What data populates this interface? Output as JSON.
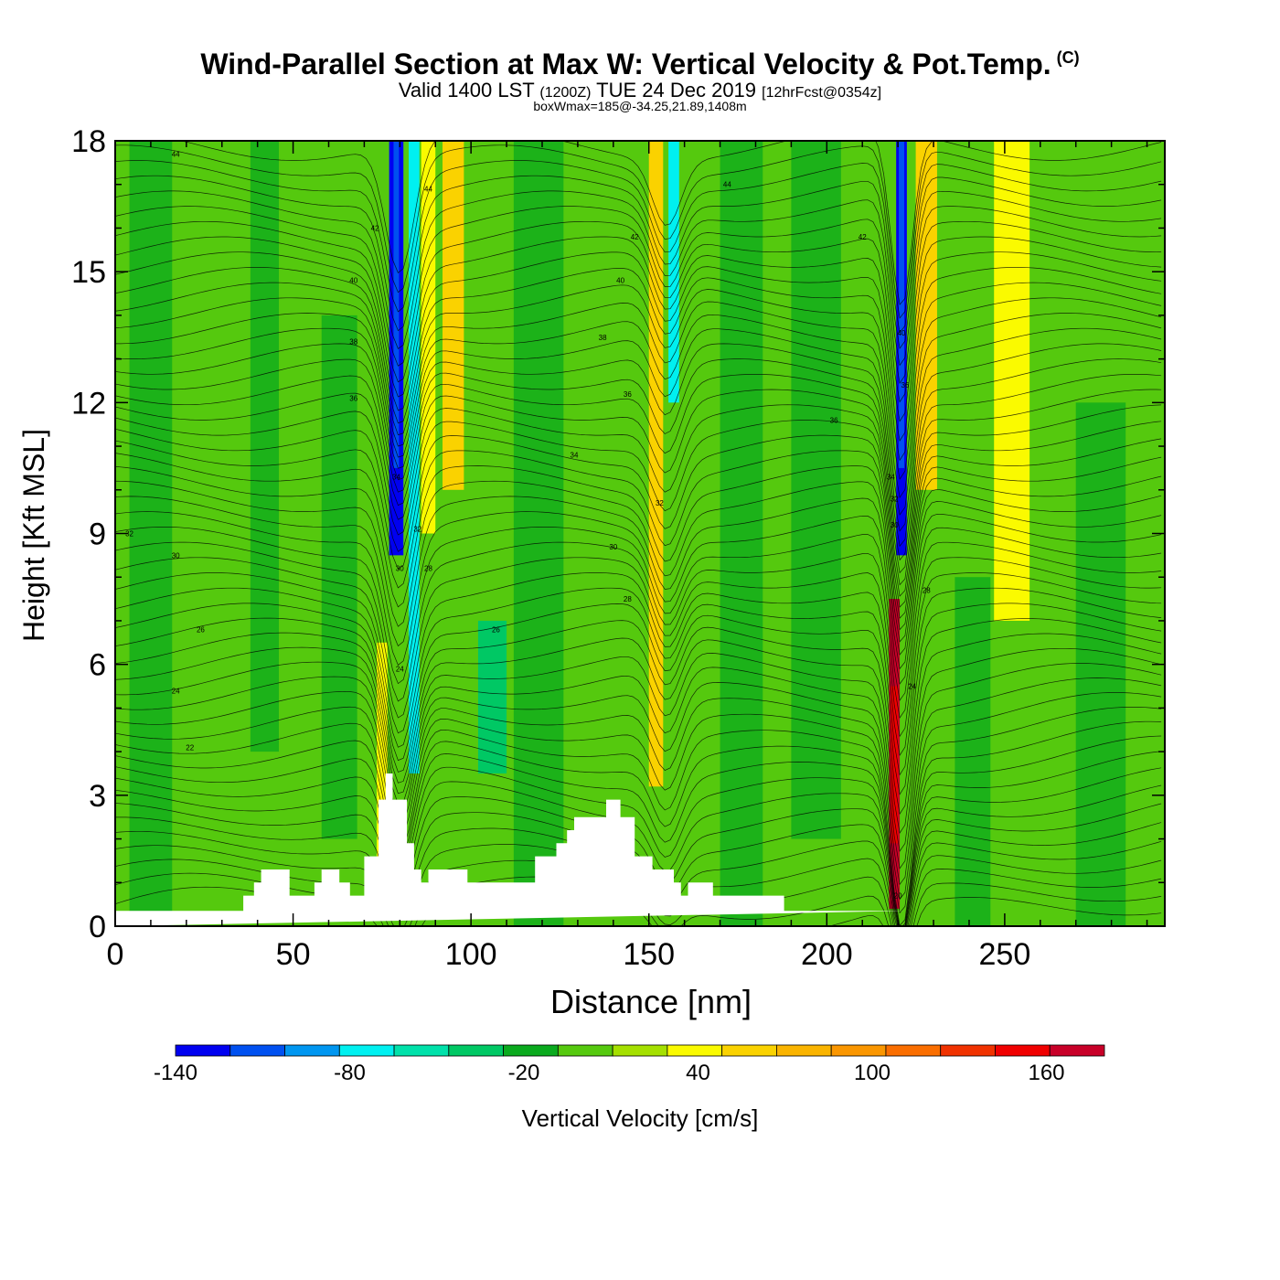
{
  "header": {
    "title": "Wind-Parallel Section at Max W: Vertical Velocity & Pot.Temp.",
    "copyright_mark": "(C)",
    "valid_prefix": "Valid 1400 LST",
    "valid_utc": "(1200Z)",
    "valid_date": "TUE 24 Dec 2019",
    "forecast_info": "[12hrFcst@0354z]",
    "box_info": "boxWmax=185@-34.25,21.89,1408m"
  },
  "colors": {
    "frame": "#000000",
    "terrain": "#ffffff",
    "base_field": "#55c90e"
  },
  "chart_data": {
    "type": "heatmap",
    "title": "Wind-Parallel Section at Max W: Vertical Velocity & Pot.Temp.",
    "xlabel": "Distance [nm]",
    "ylabel": "Height [Kft MSL]",
    "xlim": [
      0,
      295
    ],
    "ylim": [
      0,
      18
    ],
    "xticks": [
      0,
      50,
      100,
      150,
      200,
      250
    ],
    "yticks": [
      0,
      3,
      6,
      9,
      12,
      15,
      18
    ],
    "colorbar": {
      "label": "Vertical Velocity [cm/s]",
      "bounds": [
        -140,
        -120,
        -100,
        -80,
        -60,
        -40,
        -20,
        0,
        20,
        40,
        60,
        80,
        100,
        120,
        140,
        160,
        180
      ],
      "tick_labels": [
        -140,
        -80,
        -20,
        40,
        100,
        160
      ],
      "colors": [
        "#0000f0",
        "#0050f0",
        "#0096f0",
        "#00f0f0",
        "#00e1aa",
        "#00c864",
        "#0aaa1e",
        "#55c90e",
        "#a5e000",
        "#fafa00",
        "#fad200",
        "#fab400",
        "#fa9600",
        "#fa6e00",
        "#f03200",
        "#f00000",
        "#c80028"
      ]
    },
    "velocity_bands": [
      {
        "x_center": 79,
        "x_width": 4,
        "y_bottom": 8.5,
        "y_top": 18,
        "w": -140
      },
      {
        "x_center": 84,
        "x_width": 3,
        "y_bottom": 3.5,
        "y_top": 18,
        "w": -70
      },
      {
        "x_center": 88,
        "x_width": 4,
        "y_bottom": 9,
        "y_top": 18,
        "w": 40
      },
      {
        "x_center": 95,
        "x_width": 6,
        "y_bottom": 10,
        "y_top": 18,
        "w": 60
      },
      {
        "x_center": 106,
        "x_width": 8,
        "y_bottom": 3.5,
        "y_top": 7,
        "w": -40
      },
      {
        "x_center": 152,
        "x_width": 4,
        "y_bottom": 3.2,
        "y_top": 18,
        "w": 60
      },
      {
        "x_center": 157,
        "x_width": 3,
        "y_bottom": 12,
        "y_top": 18,
        "w": -80
      },
      {
        "x_center": 221,
        "x_width": 3,
        "y_bottom": 8.5,
        "y_top": 18,
        "w": -140
      },
      {
        "x_center": 219,
        "x_width": 3,
        "y_bottom": 0.4,
        "y_top": 7.5,
        "w": 180
      },
      {
        "x_center": 228,
        "x_width": 6,
        "y_bottom": 10,
        "y_top": 18,
        "w": 60
      },
      {
        "x_center": 252,
        "x_width": 10,
        "y_bottom": 7,
        "y_top": 18,
        "w": 40
      },
      {
        "x_center": 75,
        "x_width": 3,
        "y_bottom": 1.6,
        "y_top": 6.5,
        "w": 50
      }
    ],
    "terrain": {
      "x": [
        0,
        36,
        36,
        39,
        39,
        41,
        41,
        49,
        49,
        56,
        56,
        58,
        58,
        63,
        63,
        66,
        66,
        70,
        70,
        74,
        74,
        76,
        76,
        78,
        78,
        82,
        82,
        84,
        84,
        86,
        86,
        88,
        88,
        99,
        99,
        118,
        118,
        124,
        124,
        127,
        127,
        129,
        129,
        138,
        138,
        142,
        142,
        146,
        146,
        151,
        151,
        157,
        157,
        159,
        159,
        161,
        161,
        168,
        168,
        188,
        188,
        190,
        190,
        204,
        204,
        222,
        222,
        295
      ],
      "h": [
        0.35,
        0.35,
        0.7,
        0.7,
        1.0,
        1.0,
        1.3,
        1.3,
        0.7,
        0.7,
        1.0,
        1.0,
        1.3,
        1.3,
        1.0,
        1.0,
        0.7,
        0.7,
        1.6,
        1.6,
        2.9,
        2.9,
        3.5,
        3.5,
        2.9,
        2.9,
        1.9,
        1.9,
        1.3,
        1.3,
        1.0,
        1.0,
        1.3,
        1.3,
        1.0,
        1.0,
        1.6,
        1.6,
        1.9,
        1.9,
        2.2,
        2.2,
        2.5,
        2.5,
        2.9,
        2.9,
        2.5,
        2.5,
        1.6,
        1.6,
        1.3,
        1.3,
        1.0,
        1.0,
        0.7,
        0.7,
        1.0,
        1.0,
        0.7,
        0.7,
        0.35,
        0.35,
        0.35,
        0.35,
        0.35,
        0.35
      ]
    },
    "theta_contour_labels": [
      {
        "x": 17,
        "y": 17.7,
        "label": "44"
      },
      {
        "x": 88,
        "y": 16.9,
        "label": "44"
      },
      {
        "x": 73,
        "y": 16.0,
        "label": "42"
      },
      {
        "x": 146,
        "y": 15.8,
        "label": "42"
      },
      {
        "x": 172,
        "y": 17.0,
        "label": "44"
      },
      {
        "x": 210,
        "y": 15.8,
        "label": "42"
      },
      {
        "x": 67,
        "y": 14.8,
        "label": "40"
      },
      {
        "x": 142,
        "y": 14.8,
        "label": "40"
      },
      {
        "x": 221,
        "y": 13.6,
        "label": "40"
      },
      {
        "x": 67,
        "y": 13.4,
        "label": "38"
      },
      {
        "x": 137,
        "y": 13.5,
        "label": "38"
      },
      {
        "x": 67,
        "y": 12.1,
        "label": "36"
      },
      {
        "x": 144,
        "y": 12.2,
        "label": "36"
      },
      {
        "x": 222,
        "y": 12.4,
        "label": "36"
      },
      {
        "x": 202,
        "y": 11.6,
        "label": "36"
      },
      {
        "x": 129,
        "y": 10.8,
        "label": "34"
      },
      {
        "x": 218,
        "y": 10.3,
        "label": "34"
      },
      {
        "x": 79,
        "y": 10.3,
        "label": "34"
      },
      {
        "x": 153,
        "y": 9.7,
        "label": "32"
      },
      {
        "x": 219,
        "y": 9.8,
        "label": "32"
      },
      {
        "x": 4,
        "y": 9.0,
        "label": "32"
      },
      {
        "x": 85,
        "y": 9.1,
        "label": "32"
      },
      {
        "x": 17,
        "y": 8.5,
        "label": "30"
      },
      {
        "x": 80,
        "y": 8.2,
        "label": "30"
      },
      {
        "x": 140,
        "y": 8.7,
        "label": "30"
      },
      {
        "x": 219,
        "y": 9.2,
        "label": "30"
      },
      {
        "x": 88,
        "y": 8.2,
        "label": "28"
      },
      {
        "x": 144,
        "y": 7.5,
        "label": "28"
      },
      {
        "x": 228,
        "y": 7.7,
        "label": "28"
      },
      {
        "x": 107,
        "y": 6.8,
        "label": "26"
      },
      {
        "x": 24,
        "y": 6.8,
        "label": "26"
      },
      {
        "x": 17,
        "y": 5.4,
        "label": "24"
      },
      {
        "x": 80,
        "y": 5.9,
        "label": "24"
      },
      {
        "x": 224,
        "y": 5.5,
        "label": "24"
      },
      {
        "x": 21,
        "y": 4.1,
        "label": "22"
      },
      {
        "x": 220,
        "y": 0.7,
        "label": "20"
      }
    ]
  }
}
